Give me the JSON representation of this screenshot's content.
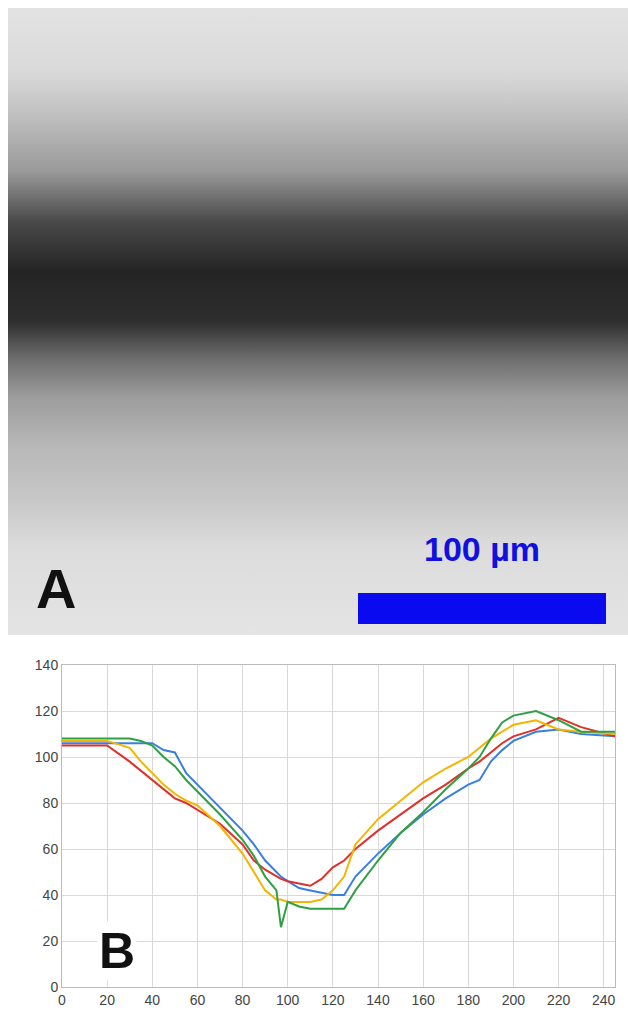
{
  "image_panel": {
    "label": "A",
    "scale_bar": "100 µm"
  },
  "chart_data": {
    "type": "line",
    "panel_label": "B",
    "x": [
      0,
      10,
      20,
      30,
      35,
      40,
      45,
      50,
      55,
      60,
      70,
      80,
      85,
      90,
      95,
      97,
      100,
      105,
      110,
      115,
      120,
      125,
      130,
      140,
      150,
      160,
      170,
      180,
      185,
      190,
      195,
      200,
      210,
      220,
      230,
      245
    ],
    "series": [
      {
        "color": "#3a7fe0",
        "values": [
          106,
          106,
          106,
          106,
          106,
          106,
          103,
          102,
          93,
          88,
          78,
          68,
          62,
          55,
          50,
          48,
          46,
          43,
          42,
          41,
          40,
          40,
          48,
          58,
          67,
          75,
          82,
          88,
          90,
          98,
          103,
          107,
          111,
          112,
          110,
          109
        ]
      },
      {
        "color": "#e0302a",
        "values": [
          105,
          105,
          105,
          98,
          94,
          90,
          86,
          82,
          80,
          77,
          71,
          62,
          55,
          51,
          48,
          47,
          46,
          45,
          44,
          47,
          52,
          55,
          60,
          68,
          75,
          82,
          88,
          95,
          98,
          102,
          106,
          109,
          112,
          117,
          113,
          109
        ]
      },
      {
        "color": "#f5b400",
        "values": [
          107,
          107,
          107,
          104,
          98,
          93,
          88,
          84,
          81,
          79,
          70,
          58,
          50,
          42,
          38,
          38,
          37,
          37,
          37,
          38,
          42,
          48,
          62,
          73,
          81,
          89,
          95,
          100,
          104,
          108,
          111,
          114,
          116,
          112,
          111,
          110
        ]
      },
      {
        "color": "#2ea043",
        "values": [
          108,
          108,
          108,
          108,
          107,
          105,
          100,
          96,
          90,
          85,
          75,
          64,
          57,
          48,
          42,
          26,
          37,
          35,
          34,
          34,
          34,
          34,
          42,
          55,
          67,
          76,
          86,
          95,
          100,
          108,
          115,
          118,
          120,
          116,
          111,
          111
        ]
      }
    ],
    "xlim": [
      0,
      245
    ],
    "xticks": [
      0,
      20,
      40,
      60,
      80,
      100,
      120,
      140,
      160,
      180,
      200,
      220,
      240
    ],
    "ylim": [
      0,
      140
    ],
    "yticks": [
      0,
      20,
      40,
      60,
      80,
      100,
      120,
      140
    ],
    "grid": true
  }
}
